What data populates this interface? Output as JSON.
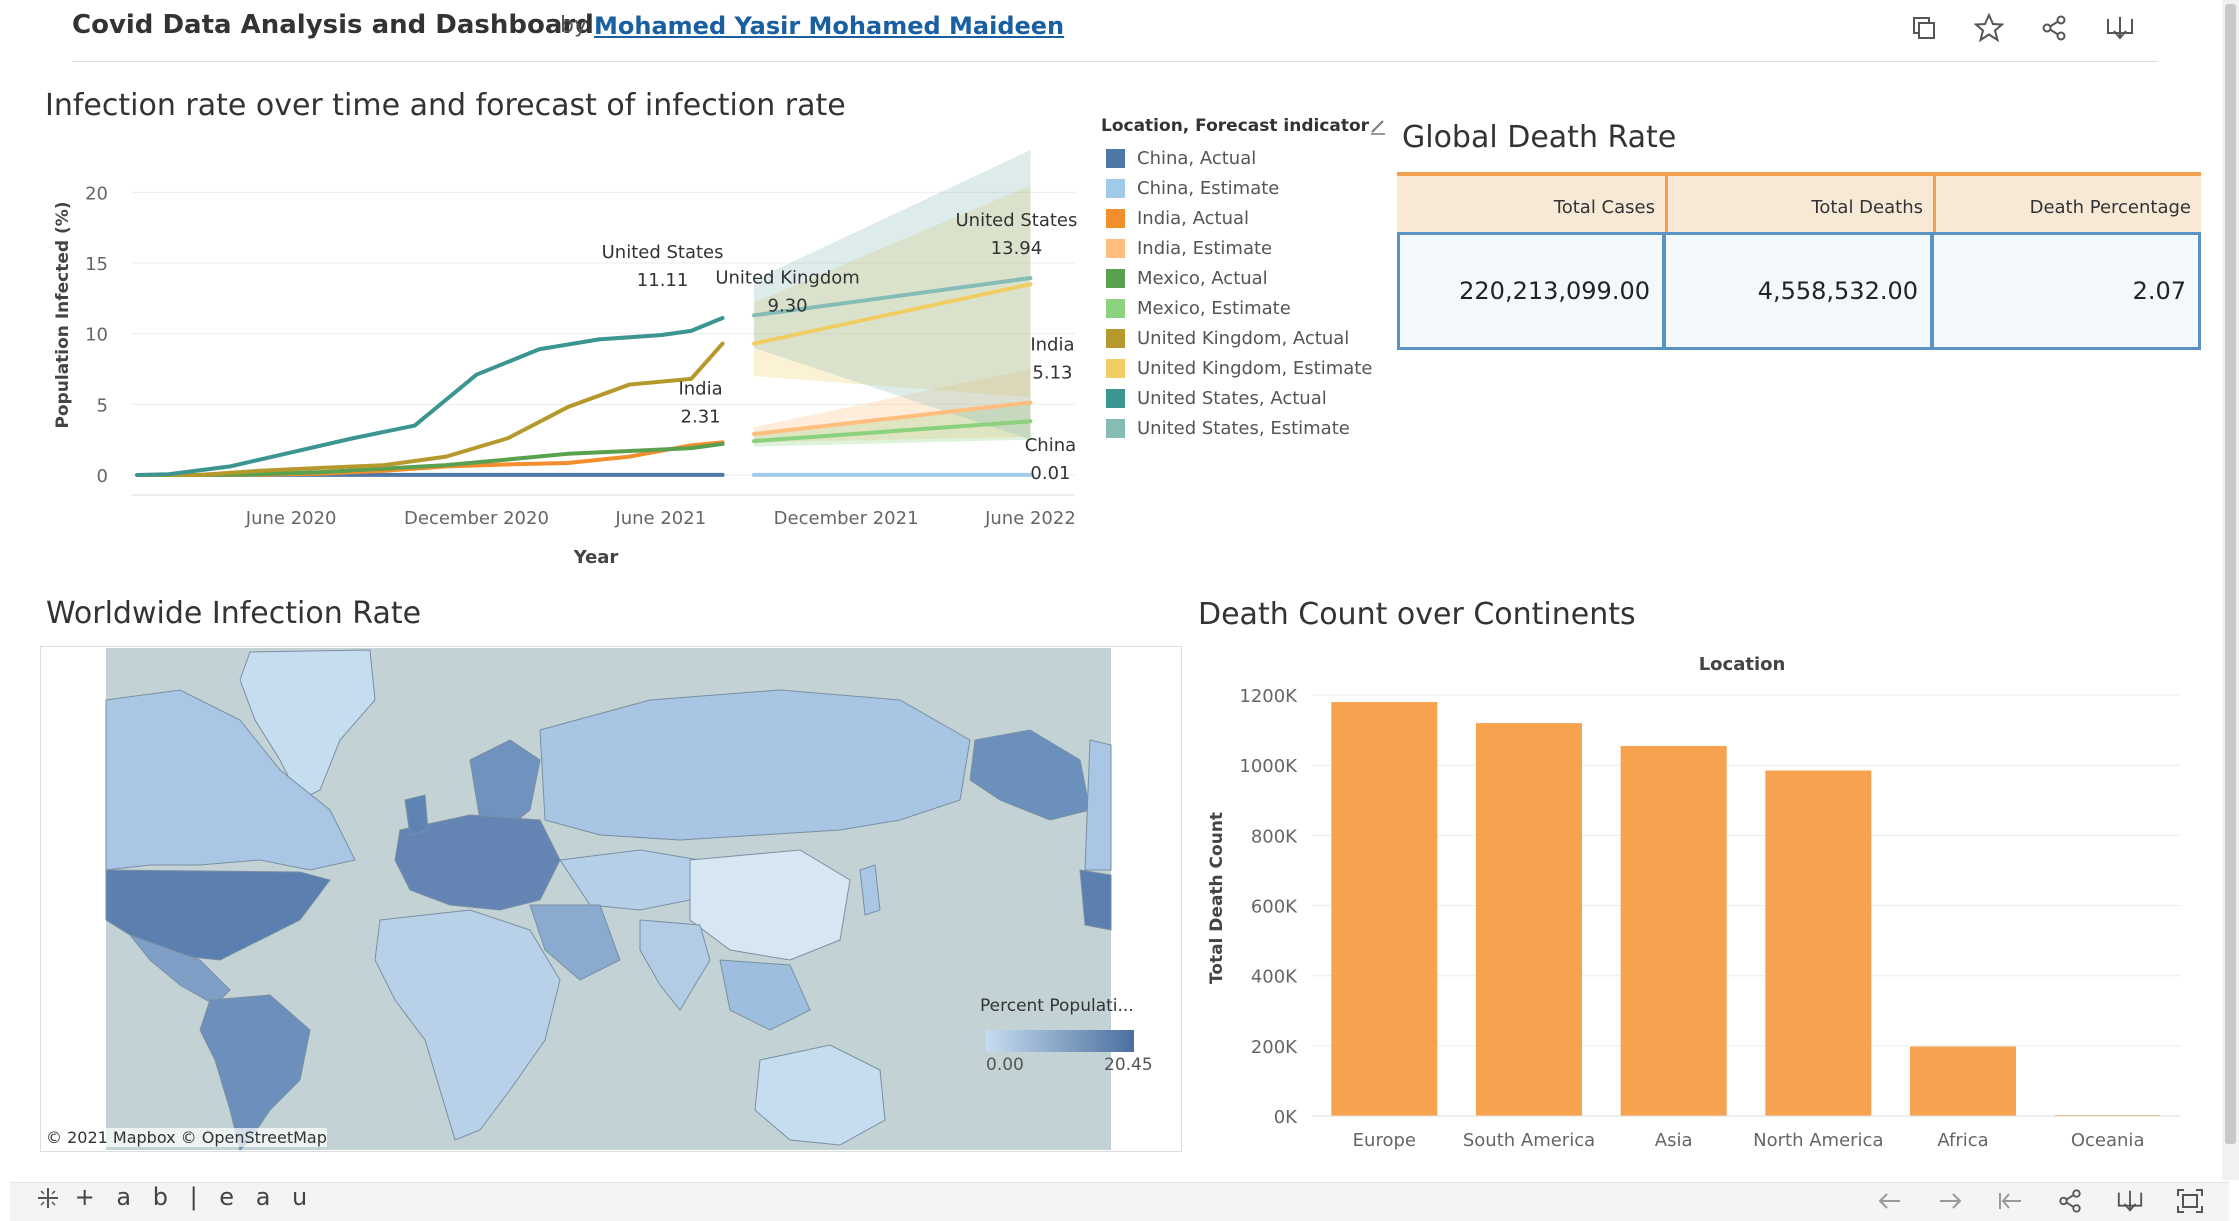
{
  "header": {
    "title": "Covid Data Analysis and Dashboard",
    "by": "by",
    "author": "Mohamed Yasir Mohamed Maideen"
  },
  "line_panel": {
    "title": "Infection rate over time and forecast of infection rate"
  },
  "legend": {
    "title": "Location, Forecast indicator",
    "items": [
      {
        "label": "China, Actual",
        "color": "#4e79a7"
      },
      {
        "label": "China, Estimate",
        "color": "#a0cbe8"
      },
      {
        "label": "India, Actual",
        "color": "#f28e2b"
      },
      {
        "label": "India, Estimate",
        "color": "#ffbe7d"
      },
      {
        "label": "Mexico, Actual",
        "color": "#59a14f"
      },
      {
        "label": "Mexico, Estimate",
        "color": "#8cd17d"
      },
      {
        "label": "United Kingdom, Actual",
        "color": "#b6992d"
      },
      {
        "label": "United Kingdom, Estimate",
        "color": "#f1ce63"
      },
      {
        "label": "United States, Actual",
        "color": "#3b9591"
      },
      {
        "label": "United States, Estimate",
        "color": "#86bcb6"
      }
    ]
  },
  "kpi": {
    "title": "Global Death Rate",
    "columns": [
      "Total Cases",
      "Total Deaths",
      "Death Percentage"
    ],
    "values": [
      "220,213,099.00",
      "4,558,532.00",
      "2.07"
    ]
  },
  "map_panel": {
    "title": "Worldwide Infection Rate",
    "credit": "© 2021 Mapbox  © OpenStreetMap",
    "legend_title": "Percent Populati...",
    "legend_min": "0.00",
    "legend_max": "20.45",
    "ocean_color": "#c3d3d5",
    "low_color": "#c6dcef",
    "high_color": "#4b6f9e"
  },
  "bar_panel": {
    "title": "Death Count over Continents"
  },
  "chart_data": [
    {
      "type": "line",
      "title": "",
      "xlabel": "Year",
      "ylabel": "Population Infected (%)",
      "ylim": [
        0,
        23
      ],
      "x_ticks": [
        {
          "label": "June 2020",
          "date": "2020-06-01"
        },
        {
          "label": "December 2020",
          "date": "2020-12-01"
        },
        {
          "label": "June 2021",
          "date": "2021-06-01"
        },
        {
          "label": "December 2021",
          "date": "2021-12-01"
        },
        {
          "label": "June 2022",
          "date": "2022-06-01"
        }
      ],
      "y_ticks": [
        0,
        5,
        10,
        15,
        20
      ],
      "grid": true,
      "series": [
        {
          "name": "China, Actual",
          "color": "#4e79a7",
          "dates": [
            "2020-01-01",
            "2020-07-01",
            "2021-01-01",
            "2021-08-01"
          ],
          "values": [
            0.0,
            0.01,
            0.01,
            0.01
          ]
        },
        {
          "name": "China, Estimate",
          "color": "#a0cbe8",
          "dates": [
            "2021-09-01",
            "2022-06-01"
          ],
          "values": [
            0.01,
            0.01
          ]
        },
        {
          "name": "India, Actual",
          "color": "#f28e2b",
          "dates": [
            "2020-01-01",
            "2020-03-01",
            "2020-05-01",
            "2020-07-01",
            "2020-09-01",
            "2020-11-01",
            "2021-01-01",
            "2021-03-01",
            "2021-05-01",
            "2021-07-01",
            "2021-08-01"
          ],
          "values": [
            0.0,
            0.0,
            0.02,
            0.1,
            0.3,
            0.6,
            0.75,
            0.85,
            1.3,
            2.1,
            2.31
          ]
        },
        {
          "name": "India, Estimate",
          "color": "#ffbe7d",
          "dates": [
            "2021-09-01",
            "2022-06-01"
          ],
          "values": [
            2.9,
            5.13
          ],
          "band_low": [
            2.3,
            2.7
          ],
          "band_high": [
            3.4,
            7.5
          ]
        },
        {
          "name": "Mexico, Actual",
          "color": "#59a14f",
          "dates": [
            "2020-01-01",
            "2020-03-01",
            "2020-05-01",
            "2020-07-01",
            "2020-09-01",
            "2020-11-01",
            "2021-01-01",
            "2021-03-01",
            "2021-05-01",
            "2021-07-01",
            "2021-08-01"
          ],
          "values": [
            0.0,
            0.0,
            0.05,
            0.2,
            0.45,
            0.7,
            1.1,
            1.5,
            1.7,
            1.9,
            2.2
          ]
        },
        {
          "name": "Mexico, Estimate",
          "color": "#8cd17d",
          "dates": [
            "2021-09-01",
            "2022-06-01"
          ],
          "values": [
            2.4,
            3.8
          ],
          "band_low": [
            2.0,
            2.5
          ],
          "band_high": [
            2.8,
            5.2
          ]
        },
        {
          "name": "United Kingdom, Actual",
          "color": "#b6992d",
          "dates": [
            "2020-01-01",
            "2020-03-01",
            "2020-05-01",
            "2020-07-01",
            "2020-09-01",
            "2020-11-01",
            "2021-01-01",
            "2021-03-01",
            "2021-05-01",
            "2021-07-01",
            "2021-08-01"
          ],
          "values": [
            0.0,
            0.0,
            0.3,
            0.5,
            0.7,
            1.3,
            2.6,
            4.8,
            6.4,
            6.8,
            9.3
          ]
        },
        {
          "name": "United Kingdom, Estimate",
          "color": "#f1ce63",
          "dates": [
            "2021-09-01",
            "2022-06-01"
          ],
          "values": [
            9.3,
            13.5
          ],
          "band_low": [
            7.0,
            5.5
          ],
          "band_high": [
            12.2,
            20.5
          ]
        },
        {
          "name": "United States, Actual",
          "color": "#3b9591",
          "dates": [
            "2020-01-01",
            "2020-02-01",
            "2020-04-01",
            "2020-06-01",
            "2020-08-01",
            "2020-10-01",
            "2020-12-01",
            "2021-02-01",
            "2021-04-01",
            "2021-06-01",
            "2021-07-01",
            "2021-08-01"
          ],
          "values": [
            0.0,
            0.05,
            0.6,
            1.6,
            2.6,
            3.5,
            7.1,
            8.9,
            9.6,
            9.9,
            10.2,
            11.11
          ]
        },
        {
          "name": "United States, Estimate",
          "color": "#86bcb6",
          "dates": [
            "2021-09-01",
            "2022-06-01"
          ],
          "values": [
            11.3,
            13.94
          ],
          "band_low": [
            9.0,
            2.5
          ],
          "band_high": [
            13.8,
            23.0
          ]
        }
      ],
      "annotations": [
        {
          "text": "United States",
          "value": "11.11"
        },
        {
          "text": "United Kingdom",
          "value": "9.30"
        },
        {
          "text": "India",
          "value": "2.31"
        },
        {
          "text": "United States",
          "value": "13.94"
        },
        {
          "text": "India",
          "value": "5.13"
        },
        {
          "text": "China",
          "value": "0.01"
        }
      ]
    },
    {
      "type": "bar",
      "title": "",
      "xlabel": "Location",
      "ylabel": "Total Death Count",
      "ylim": [
        0,
        1300000
      ],
      "y_ticks": [
        0,
        200000,
        400000,
        600000,
        800000,
        1000000,
        1200000
      ],
      "y_tick_labels": [
        "0K",
        "200K",
        "400K",
        "600K",
        "800K",
        "1000K",
        "1200K"
      ],
      "grid": true,
      "color": "#f7a24f",
      "categories": [
        "Europe",
        "South America",
        "Asia",
        "North America",
        "Africa",
        "Oceania"
      ],
      "values": [
        1180000,
        1120000,
        1055000,
        985000,
        198000,
        2500
      ]
    }
  ]
}
